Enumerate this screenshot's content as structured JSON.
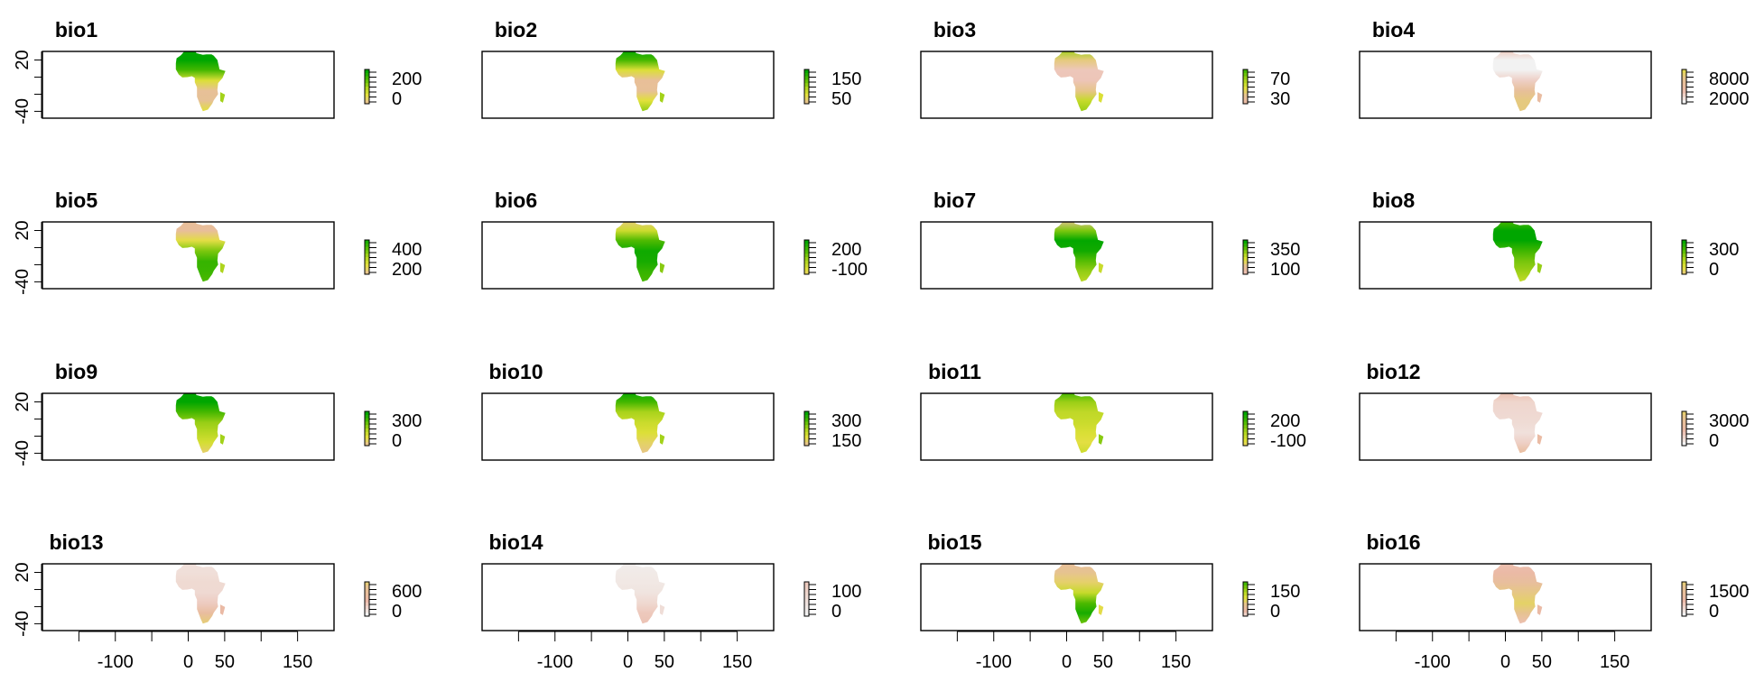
{
  "figure": {
    "background": "#ffffff",
    "color_ramp": [
      "#F2F2F2",
      "#EBB9A8",
      "#E6C293",
      "#E3E13B",
      "#A8D31A",
      "#4CB900",
      "#00A600"
    ]
  },
  "chart_data": [
    {
      "type": "heatmap",
      "title": "bio1",
      "legend_labels": [
        "200",
        "0"
      ],
      "ramp_start": 0.35,
      "ramp_end": 1.0,
      "ylim": [
        -40,
        20
      ],
      "xlim": [
        -200,
        200
      ]
    },
    {
      "type": "heatmap",
      "title": "bio2",
      "legend_labels": [
        "150",
        "50"
      ],
      "ramp_start": 0.35,
      "ramp_end": 1.0,
      "ylim": [
        -40,
        20
      ],
      "xlim": [
        -200,
        200
      ]
    },
    {
      "type": "heatmap",
      "title": "bio3",
      "legend_labels": [
        "70",
        "30"
      ],
      "ramp_start": 0.2,
      "ramp_end": 0.85,
      "ylim": [
        -40,
        20
      ],
      "xlim": [
        -200,
        200
      ]
    },
    {
      "type": "heatmap",
      "title": "bio4",
      "legend_labels": [
        "8000",
        "2000"
      ],
      "ramp_start": 0.0,
      "ramp_end": 0.45,
      "ylim": [
        -40,
        20
      ],
      "xlim": [
        -200,
        200
      ]
    },
    {
      "type": "heatmap",
      "title": "bio5",
      "legend_labels": [
        "400",
        "200"
      ],
      "ramp_start": 0.35,
      "ramp_end": 0.95,
      "ylim": [
        -40,
        20
      ],
      "xlim": [
        -200,
        200
      ]
    },
    {
      "type": "heatmap",
      "title": "bio6",
      "legend_labels": [
        "200",
        "-100"
      ],
      "ramp_start": 0.45,
      "ramp_end": 1.0,
      "ylim": [
        -40,
        20
      ],
      "xlim": [
        -200,
        200
      ]
    },
    {
      "type": "heatmap",
      "title": "bio7",
      "legend_labels": [
        "350",
        "100"
      ],
      "ramp_start": 0.15,
      "ramp_end": 1.0,
      "ylim": [
        -40,
        20
      ],
      "xlim": [
        -200,
        200
      ]
    },
    {
      "type": "heatmap",
      "title": "bio8",
      "legend_labels": [
        "300",
        "0"
      ],
      "ramp_start": 0.4,
      "ramp_end": 1.0,
      "ylim": [
        -40,
        20
      ],
      "xlim": [
        -200,
        200
      ]
    },
    {
      "type": "heatmap",
      "title": "bio9",
      "legend_labels": [
        "300",
        "0"
      ],
      "ramp_start": 0.35,
      "ramp_end": 1.0,
      "ylim": [
        -40,
        20
      ],
      "xlim": [
        -200,
        200
      ]
    },
    {
      "type": "heatmap",
      "title": "bio10",
      "legend_labels": [
        "300",
        "150"
      ],
      "ramp_start": 0.35,
      "ramp_end": 1.0,
      "ylim": [
        -40,
        20
      ],
      "xlim": [
        -200,
        200
      ]
    },
    {
      "type": "heatmap",
      "title": "bio11",
      "legend_labels": [
        "200",
        "-100"
      ],
      "ramp_start": 0.45,
      "ramp_end": 1.0,
      "ylim": [
        -40,
        20
      ],
      "xlim": [
        -200,
        200
      ]
    },
    {
      "type": "heatmap",
      "title": "bio12",
      "legend_labels": [
        "3000",
        "0"
      ],
      "ramp_start": 0.0,
      "ramp_end": 0.4,
      "ylim": [
        -40,
        20
      ],
      "xlim": [
        -200,
        200
      ]
    },
    {
      "type": "heatmap",
      "title": "bio13",
      "legend_labels": [
        "600",
        "0"
      ],
      "ramp_start": 0.0,
      "ramp_end": 0.38,
      "ylim": [
        -40,
        20
      ],
      "xlim": [
        -200,
        200
      ]
    },
    {
      "type": "heatmap",
      "title": "bio14",
      "legend_labels": [
        "100",
        "0"
      ],
      "ramp_start": 0.0,
      "ramp_end": 0.12,
      "ylim": [
        -40,
        20
      ],
      "xlim": [
        -200,
        200
      ]
    },
    {
      "type": "heatmap",
      "title": "bio15",
      "legend_labels": [
        "150",
        "0"
      ],
      "ramp_start": 0.1,
      "ramp_end": 0.85,
      "ylim": [
        -40,
        20
      ],
      "xlim": [
        -200,
        200
      ]
    },
    {
      "type": "heatmap",
      "title": "bio16",
      "legend_labels": [
        "1500",
        "0"
      ],
      "ramp_start": 0.0,
      "ramp_end": 0.38,
      "ylim": [
        -40,
        20
      ],
      "xlim": [
        -200,
        200
      ]
    }
  ],
  "axes": {
    "y_tick_labels": [
      "20",
      "-40"
    ],
    "x_tick_labels": [
      "-100",
      "0",
      "50",
      "150"
    ]
  }
}
